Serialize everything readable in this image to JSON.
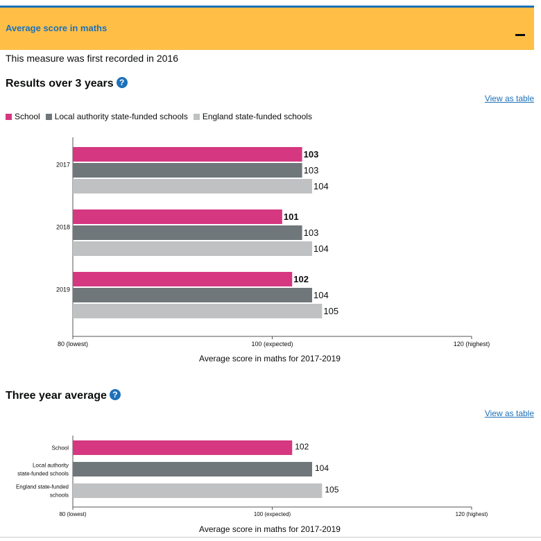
{
  "accordion": {
    "title": "Average score in maths",
    "toggle_icon": "minus-icon"
  },
  "note": "This measure was first recorded in 2016",
  "sections": {
    "results": {
      "heading": "Results over 3 years",
      "help_glyph": "?",
      "view_table": "View as table"
    },
    "average": {
      "heading": "Three year average",
      "help_glyph": "?",
      "view_table": "View as table"
    }
  },
  "colors": {
    "school": "#d53880",
    "la": "#6f777b",
    "england": "#bfc1c3"
  },
  "legend": [
    {
      "label": "School",
      "color": "#d53880"
    },
    {
      "label": "Local authority state-funded schools",
      "color": "#6f777b"
    },
    {
      "label": "England state-funded schools",
      "color": "#bfc1c3"
    }
  ],
  "chart_data": [
    {
      "type": "bar",
      "orientation": "horizontal",
      "categories": [
        "2017",
        "2018",
        "2019"
      ],
      "series": [
        {
          "name": "School",
          "values": [
            103,
            101,
            102
          ]
        },
        {
          "name": "Local authority state-funded schools",
          "values": [
            103,
            103,
            104
          ]
        },
        {
          "name": "England state-funded schools",
          "values": [
            104,
            104,
            105
          ]
        }
      ],
      "xlim": [
        80,
        120
      ],
      "xticks": [
        {
          "value": 80,
          "label": "80 (lowest)"
        },
        {
          "value": 100,
          "label": "100 (expected)"
        },
        {
          "value": 120,
          "label": "120 (highest)"
        }
      ],
      "xlabel": "Average score in maths for 2017-2019"
    },
    {
      "type": "bar",
      "orientation": "horizontal",
      "categories": [
        [
          "School"
        ],
        [
          "Local authority",
          "state-funded schools"
        ],
        [
          "England state-funded",
          "schools"
        ]
      ],
      "values": [
        102,
        104,
        105
      ],
      "xlim": [
        80,
        120
      ],
      "xticks": [
        {
          "value": 80,
          "label": "80 (lowest)"
        },
        {
          "value": 100,
          "label": "100 (expected)"
        },
        {
          "value": 120,
          "label": "120 (highest)"
        }
      ],
      "xlabel": "Average score in maths for 2017-2019"
    }
  ]
}
